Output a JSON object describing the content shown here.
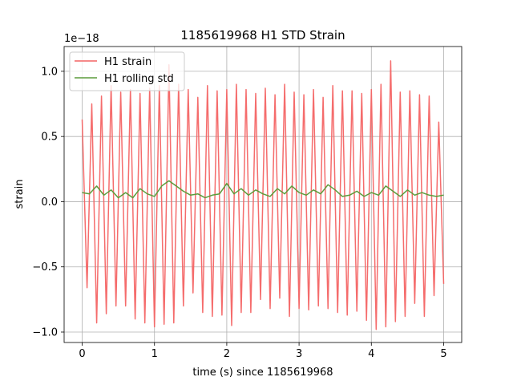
{
  "chart_data": {
    "type": "line",
    "title": "1185619968 H1 STD Strain",
    "xlabel": "time (s) since 1185619968",
    "ylabel": "strain",
    "offset_text": "1e−18",
    "xlim": [
      -0.25,
      5.25
    ],
    "ylim": [
      -1.08e-18,
      1.19e-18
    ],
    "xticks": [
      0,
      1,
      2,
      3,
      4,
      5
    ],
    "xtick_labels": [
      "0",
      "1",
      "2",
      "3",
      "4",
      "5"
    ],
    "yticks": [
      -1e-18,
      -5e-19,
      0.0,
      5e-19,
      1e-18
    ],
    "ytick_labels": [
      "−1.0",
      "−0.5",
      "0.0",
      "0.5",
      "1.0"
    ],
    "grid": true,
    "legend_position": "top-left",
    "series": [
      {
        "name": "H1 strain",
        "color": "#f46464",
        "x": [
          0.0,
          0.067,
          0.133,
          0.2,
          0.267,
          0.333,
          0.4,
          0.467,
          0.533,
          0.6,
          0.667,
          0.733,
          0.8,
          0.867,
          0.933,
          1.0,
          1.067,
          1.133,
          1.2,
          1.267,
          1.333,
          1.4,
          1.467,
          1.533,
          1.6,
          1.667,
          1.733,
          1.8,
          1.867,
          1.933,
          2.0,
          2.067,
          2.133,
          2.2,
          2.267,
          2.333,
          2.4,
          2.467,
          2.533,
          2.6,
          2.667,
          2.733,
          2.8,
          2.867,
          2.933,
          3.0,
          3.067,
          3.133,
          3.2,
          3.267,
          3.333,
          3.4,
          3.467,
          3.533,
          3.6,
          3.667,
          3.733,
          3.8,
          3.867,
          3.933,
          4.0,
          4.067,
          4.133,
          4.2,
          4.267,
          4.333,
          4.4,
          4.467,
          4.533,
          4.6,
          4.667,
          4.733,
          4.8,
          4.867,
          4.933,
          5.0
        ],
        "values": [
          6.3e-19,
          -6.6e-19,
          7.5e-19,
          -9.3e-19,
          8.1e-19,
          -8.6e-19,
          8.9e-19,
          -8e-19,
          8.4e-19,
          -8e-19,
          8.6e-19,
          -9e-19,
          8.3e-19,
          -9.3e-19,
          8.7e-19,
          -9.6e-19,
          8.9e-19,
          -9.4e-19,
          1.05e-18,
          -9.3e-19,
          9e-19,
          -8e-19,
          8.6e-19,
          -7e-19,
          8e-19,
          -8.5e-19,
          8.9e-19,
          -8.8e-19,
          8.5e-19,
          -8.7e-19,
          8.6e-19,
          -9.5e-19,
          9e-19,
          -8.5e-19,
          8.6e-19,
          -8.5e-19,
          8.3e-19,
          -7.5e-19,
          8.7e-19,
          -8.2e-19,
          8.2e-19,
          -7.4e-19,
          9e-19,
          -8.8e-19,
          8.4e-19,
          -8.2e-19,
          8.2e-19,
          -8.3e-19,
          8.6e-19,
          -8e-19,
          8e-19,
          -8.2e-19,
          8.9e-19,
          -8.5e-19,
          8.5e-19,
          -8.7e-19,
          8.5e-19,
          -8.4e-19,
          8.3e-19,
          -9.1e-19,
          8.6e-19,
          -9.8e-19,
          9e-19,
          -9.6e-19,
          1.08e-18,
          -9.2e-19,
          8.4e-19,
          -8.8e-19,
          8.5e-19,
          -7.8e-19,
          8.2e-19,
          -8.8e-19,
          8.1e-19,
          -7.2e-19,
          6.1e-19,
          -6.3e-19
        ]
      },
      {
        "name": "H1 rolling std",
        "color": "#5c9c3c",
        "x": [
          0.0,
          0.1,
          0.2,
          0.3,
          0.4,
          0.5,
          0.6,
          0.7,
          0.8,
          0.9,
          1.0,
          1.1,
          1.2,
          1.3,
          1.4,
          1.5,
          1.6,
          1.7,
          1.8,
          1.9,
          2.0,
          2.1,
          2.2,
          2.3,
          2.4,
          2.5,
          2.6,
          2.7,
          2.8,
          2.9,
          3.0,
          3.1,
          3.2,
          3.3,
          3.4,
          3.5,
          3.6,
          3.7,
          3.8,
          3.9,
          4.0,
          4.1,
          4.2,
          4.3,
          4.4,
          4.5,
          4.6,
          4.7,
          4.8,
          4.9,
          5.0
        ],
        "values": [
          7e-20,
          6e-20,
          1.2e-19,
          5e-20,
          9e-20,
          3e-20,
          7e-20,
          3e-20,
          1e-19,
          6e-20,
          4e-20,
          1.2e-19,
          1.6e-19,
          1.2e-19,
          8e-20,
          5e-20,
          6e-20,
          3e-20,
          5e-20,
          6e-20,
          1.4e-19,
          6e-20,
          1e-19,
          5e-20,
          9e-20,
          6e-20,
          4e-20,
          1e-19,
          6e-20,
          1.2e-19,
          7e-20,
          5e-20,
          9e-20,
          6e-20,
          1.3e-19,
          9e-20,
          4e-20,
          5e-20,
          8e-20,
          4e-20,
          7e-20,
          5e-20,
          1.2e-19,
          8e-20,
          4e-20,
          9e-20,
          5e-20,
          7e-20,
          5e-20,
          4e-20,
          5e-20
        ]
      }
    ]
  }
}
